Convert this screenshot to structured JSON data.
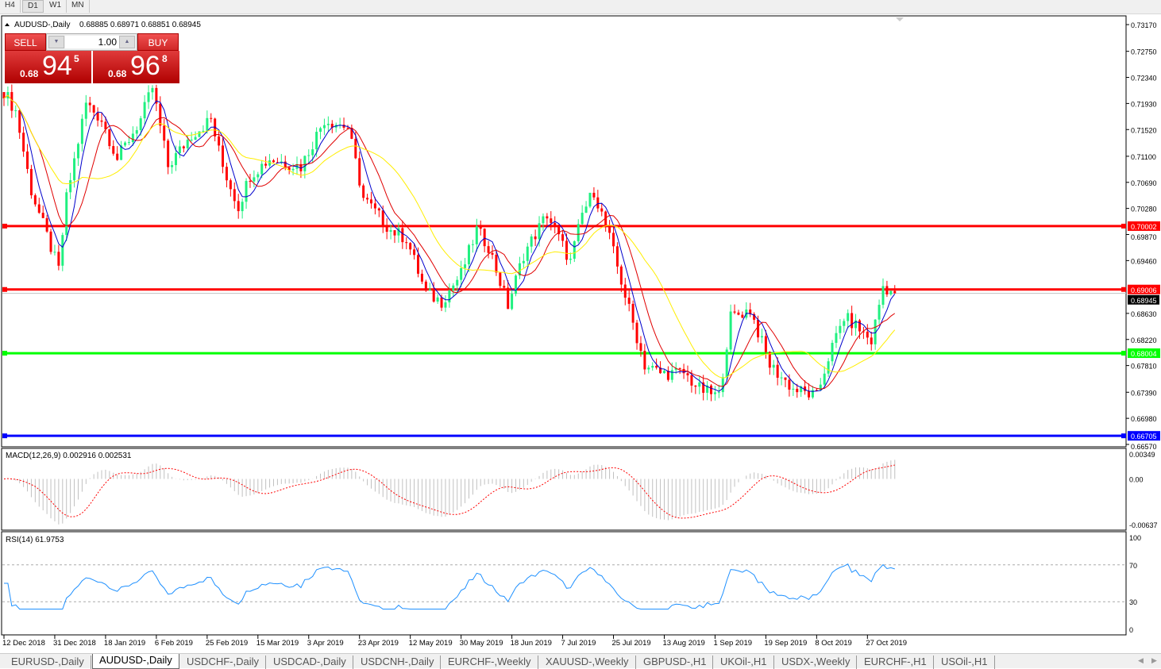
{
  "timeframes": [
    "H4",
    "D1",
    "W1",
    "MN"
  ],
  "active_timeframe": "D1",
  "chart": {
    "symbol_line": "AUDUSD-,Daily",
    "ohlc": "0.68885 0.68971 0.68851 0.68945",
    "current_price": "0.68945"
  },
  "trade_panel": {
    "sell_label": "SELL",
    "buy_label": "BUY",
    "lot": "1.00",
    "sell_prefix": "0.68",
    "sell_big": "94",
    "sell_sup": "5",
    "buy_prefix": "0.68",
    "buy_big": "96",
    "buy_sup": "8"
  },
  "price_axis": [
    "0.73170",
    "0.72750",
    "0.72340",
    "0.71930",
    "0.71520",
    "0.71100",
    "0.70690",
    "0.70280",
    "0.69870",
    "0.69460",
    "0.68630",
    "0.68220",
    "0.67810",
    "0.67390",
    "0.66980",
    "0.66570"
  ],
  "hlines": [
    {
      "price": "0.70002",
      "color": "#ff0000"
    },
    {
      "price": "0.69006",
      "color": "#ff0000"
    },
    {
      "price": "0.68004",
      "color": "#00ff00"
    },
    {
      "price": "0.66705",
      "color": "#0000ff"
    }
  ],
  "macd": {
    "label": "MACD(12,26,9) 0.002916 0.002531",
    "axis": [
      "0.00349",
      "0.00",
      "-0.00637"
    ]
  },
  "rsi": {
    "label": "RSI(14) 61.9753",
    "axis": [
      "100",
      "70",
      "30",
      "0"
    ]
  },
  "date_axis": [
    "12 Dec 2018",
    "31 Dec 2018",
    "18 Jan 2019",
    "6 Feb 2019",
    "25 Feb 2019",
    "15 Mar 2019",
    "3 Apr 2019",
    "23 Apr 2019",
    "12 May 2019",
    "30 May 2019",
    "18 Jun 2019",
    "7 Jul 2019",
    "25 Jul 2019",
    "13 Aug 2019",
    "1 Sep 2019",
    "19 Sep 2019",
    "8 Oct 2019",
    "27 Oct 2019"
  ],
  "bottom_tabs": [
    "EURUSD-,Daily",
    "AUDUSD-,Daily",
    "USDCHF-,Daily",
    "USDCAD-,Daily",
    "USDCNH-,Daily",
    "EURCHF-,Weekly",
    "XAUUSD-,Weekly",
    "GBPUSD-,H1",
    "UKOil-,H1",
    "USDX-,Weekly",
    "EURCHF-,H1",
    "USOil-,H1"
  ],
  "active_tab": "AUDUSD-,Daily",
  "colors": {
    "bull": "#20f080",
    "bear": "#ff0000",
    "ma_fast": "#0000cc",
    "ma_mid": "#e00000",
    "ma_slow": "#ffee00",
    "macd_hist": "#c0c0c0",
    "macd_signal": "#ff0000",
    "rsi": "#1e90ff"
  },
  "chart_data": {
    "type": "candlestick",
    "symbol": "AUDUSD",
    "timeframe": "Daily",
    "ylim": [
      0.6657,
      0.7317
    ],
    "close_keypoints": [
      [
        0,
        0.7212
      ],
      [
        3,
        0.7181
      ],
      [
        7,
        0.7056
      ],
      [
        14,
        0.6931
      ],
      [
        16,
        0.7044
      ],
      [
        21,
        0.7193
      ],
      [
        25,
        0.7168
      ],
      [
        29,
        0.7106
      ],
      [
        35,
        0.7168
      ],
      [
        38,
        0.7218
      ],
      [
        42,
        0.7094
      ],
      [
        48,
        0.7144
      ],
      [
        53,
        0.7168
      ],
      [
        56,
        0.7094
      ],
      [
        60,
        0.7031
      ],
      [
        63,
        0.7081
      ],
      [
        68,
        0.7106
      ],
      [
        76,
        0.7094
      ],
      [
        82,
        0.7168
      ],
      [
        88,
        0.7156
      ],
      [
        92,
        0.7044
      ],
      [
        99,
        0.6994
      ],
      [
        103,
        0.6981
      ],
      [
        108,
        0.6894
      ],
      [
        112,
        0.6882
      ],
      [
        117,
        0.6925
      ],
      [
        121,
        0.6994
      ],
      [
        124,
        0.6969
      ],
      [
        129,
        0.6875
      ],
      [
        133,
        0.6956
      ],
      [
        139,
        0.7019
      ],
      [
        145,
        0.6944
      ],
      [
        148,
        0.7019
      ],
      [
        151,
        0.7056
      ],
      [
        155,
        0.6981
      ],
      [
        160,
        0.6869
      ],
      [
        164,
        0.6782
      ],
      [
        168,
        0.6769
      ],
      [
        174,
        0.6769
      ],
      [
        178,
        0.6744
      ],
      [
        183,
        0.6732
      ],
      [
        186,
        0.6857
      ],
      [
        191,
        0.6869
      ],
      [
        196,
        0.6782
      ],
      [
        202,
        0.6744
      ],
      [
        208,
        0.6732
      ],
      [
        211,
        0.6794
      ],
      [
        215,
        0.6857
      ],
      [
        218,
        0.6844
      ],
      [
        222,
        0.6819
      ],
      [
        225,
        0.6906
      ],
      [
        228,
        0.68945
      ]
    ]
  }
}
